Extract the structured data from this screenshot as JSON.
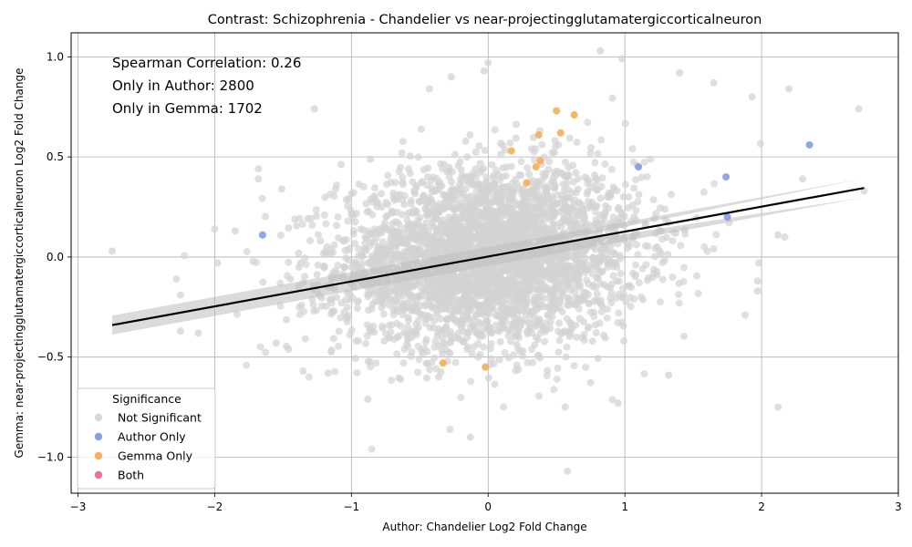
{
  "chart_data": {
    "type": "scatter",
    "title": "Contrast: Schizophrenia - Chandelier vs near-projectingglutamatergiccorticalneuron",
    "xlabel": "Author: Chandelier Log2 Fold Change",
    "ylabel": "Gemma: near-projectingglutamatergiccorticalneuron Log2 Fold Change",
    "xlim": [
      -3.05,
      3.0
    ],
    "ylim": [
      -1.18,
      1.12
    ],
    "x_ticks": [
      -3,
      -2,
      -1,
      0,
      1,
      2,
      3
    ],
    "x_tick_labels": [
      "−3",
      "−2",
      "−1",
      "0",
      "1",
      "2",
      "3"
    ],
    "y_ticks": [
      -1.0,
      -0.5,
      0.0,
      0.5,
      1.0
    ],
    "y_tick_labels": [
      "−1.0",
      "−0.5",
      "0.0",
      "0.5",
      "1.0"
    ],
    "grid": true,
    "annotations": [
      "Spearman Correlation: 0.26",
      "Only in Author: 2800",
      "Only in Gemma: 1702"
    ],
    "legend": {
      "title": "Significance",
      "placement": "lower-left",
      "entries": [
        {
          "label": "Not Significant",
          "color": "#d3d3d3"
        },
        {
          "label": "Author Only",
          "color": "#7b96e6"
        },
        {
          "label": "Gemma Only",
          "color": "#f5a94d"
        },
        {
          "label": "Both",
          "color": "#e8667f"
        }
      ]
    },
    "regression_line": {
      "x": [
        -2.75,
        2.75
      ],
      "y": [
        -0.34,
        0.345
      ],
      "color": "#000000"
    },
    "series": [
      {
        "name": "Author Only",
        "color": "#7b96e6",
        "points": [
          [
            -1.65,
            0.11
          ],
          [
            1.1,
            0.45
          ],
          [
            1.74,
            0.4
          ],
          [
            1.75,
            0.2
          ],
          [
            2.35,
            0.56
          ]
        ]
      },
      {
        "name": "Gemma Only",
        "color": "#f5a94d",
        "points": [
          [
            0.5,
            0.73
          ],
          [
            0.63,
            0.71
          ],
          [
            0.53,
            0.62
          ],
          [
            0.37,
            0.61
          ],
          [
            0.17,
            0.53
          ],
          [
            0.35,
            0.45
          ],
          [
            0.38,
            0.48
          ],
          [
            0.28,
            0.37
          ],
          [
            -0.33,
            -0.53
          ],
          [
            -0.02,
            -0.55
          ]
        ]
      },
      {
        "name": "Not Significant",
        "color": "#d3d3d3",
        "summary": {
          "x_center": 0.0,
          "y_center": 0.0,
          "x_spread": 0.55,
          "y_spread": 0.22,
          "count": 3600
        },
        "outliers": [
          [
            -2.75,
            0.03
          ],
          [
            -2.0,
            0.14
          ],
          [
            -1.98,
            -0.03
          ],
          [
            -2.28,
            -0.11
          ],
          [
            -2.25,
            -0.19
          ],
          [
            -2.12,
            -0.38
          ],
          [
            -2.25,
            -0.37
          ],
          [
            -1.68,
            0.44
          ],
          [
            -1.68,
            0.39
          ],
          [
            -1.27,
            0.74
          ],
          [
            -1.85,
            0.13
          ],
          [
            -1.51,
            0.34
          ],
          [
            0.0,
            0.97
          ],
          [
            -0.03,
            0.93
          ],
          [
            -0.27,
            0.9
          ],
          [
            -0.43,
            0.84
          ],
          [
            0.82,
            1.03
          ],
          [
            0.98,
            0.99
          ],
          [
            1.4,
            0.92
          ],
          [
            1.65,
            0.87
          ],
          [
            1.93,
            0.8
          ],
          [
            2.2,
            0.84
          ],
          [
            2.71,
            0.74
          ],
          [
            2.75,
            0.33
          ],
          [
            2.3,
            0.39
          ],
          [
            2.17,
            0.1
          ],
          [
            2.12,
            0.11
          ],
          [
            1.98,
            -0.03
          ],
          [
            1.97,
            -0.12
          ],
          [
            1.97,
            -0.17
          ],
          [
            1.88,
            -0.29
          ],
          [
            2.12,
            -0.75
          ],
          [
            1.32,
            -0.59
          ],
          [
            0.95,
            -0.73
          ],
          [
            0.58,
            -1.07
          ],
          [
            -0.13,
            -0.9
          ],
          [
            -0.88,
            -0.71
          ],
          [
            -1.17,
            -0.58
          ],
          [
            -1.55,
            -0.43
          ],
          [
            -1.46,
            -0.46
          ]
        ]
      }
    ]
  }
}
